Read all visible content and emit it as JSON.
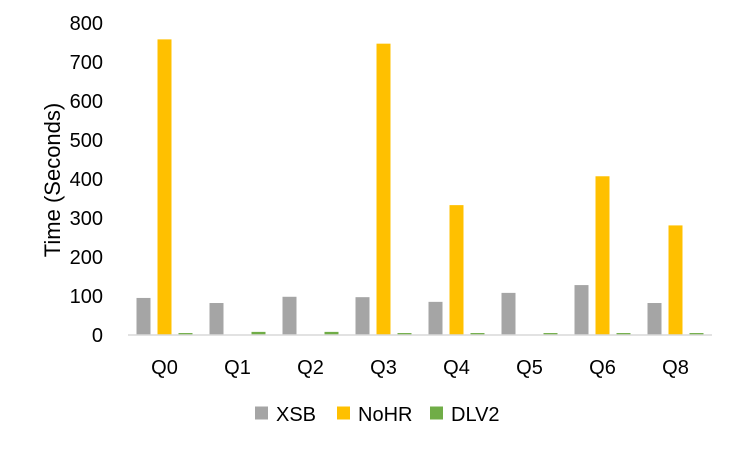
{
  "chart_data": {
    "type": "bar",
    "title": "",
    "xlabel": "",
    "ylabel": "Time (Seconds)",
    "ylim": [
      0,
      800
    ],
    "yticks": [
      0,
      100,
      200,
      300,
      400,
      500,
      600,
      700,
      800
    ],
    "grid": false,
    "legend_position": "bottom",
    "categories": [
      "Q0",
      "Q1",
      "Q2",
      "Q3",
      "Q4",
      "Q5",
      "Q6",
      "Q8"
    ],
    "series": [
      {
        "name": "XSB",
        "color": "#a5a5a5",
        "values": [
          95,
          82,
          98,
          97,
          85,
          108,
          128,
          82
        ]
      },
      {
        "name": "NoHR",
        "color": "#ffc000",
        "values": [
          758,
          0,
          0,
          747,
          333,
          0,
          407,
          281
        ]
      },
      {
        "name": "DLV2",
        "color": "#70ad47",
        "values": [
          5,
          8,
          8,
          5,
          5,
          5,
          5,
          5
        ]
      }
    ]
  }
}
